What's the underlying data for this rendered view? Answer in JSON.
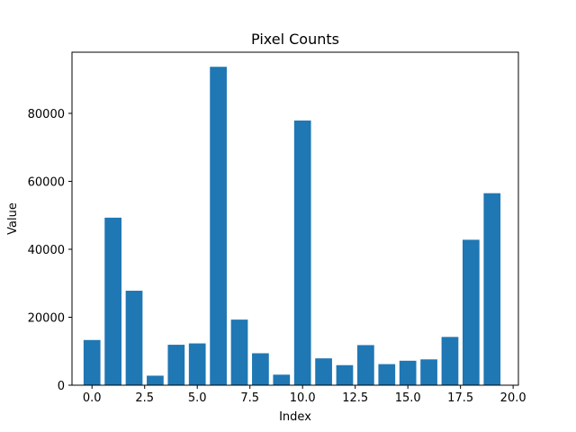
{
  "chart_data": {
    "type": "bar",
    "title": "Pixel Counts",
    "xlabel": "Index",
    "ylabel": "Value",
    "x": [
      0,
      1,
      2,
      3,
      4,
      5,
      6,
      7,
      8,
      9,
      10,
      11,
      12,
      13,
      14,
      15,
      16,
      17,
      18,
      19
    ],
    "values": [
      13300,
      49300,
      27800,
      2800,
      11900,
      12300,
      93700,
      19300,
      9400,
      3100,
      77900,
      7900,
      5900,
      11800,
      6200,
      7200,
      7600,
      14200,
      42800,
      56500
    ],
    "xlim": [
      -0.95,
      20.25
    ],
    "ylim": [
      0,
      98000
    ],
    "xticks": [
      0.0,
      2.5,
      5.0,
      7.5,
      10.0,
      12.5,
      15.0,
      17.5,
      20.0
    ],
    "xtick_labels": [
      "0.0",
      "2.5",
      "5.0",
      "7.5",
      "10.0",
      "12.5",
      "15.0",
      "17.5",
      "20.0"
    ],
    "yticks": [
      0,
      20000,
      40000,
      60000,
      80000
    ],
    "ytick_labels": [
      "0",
      "20000",
      "40000",
      "60000",
      "80000"
    ],
    "bar_color": "#1f77b4",
    "grid": false,
    "legend": "none"
  }
}
